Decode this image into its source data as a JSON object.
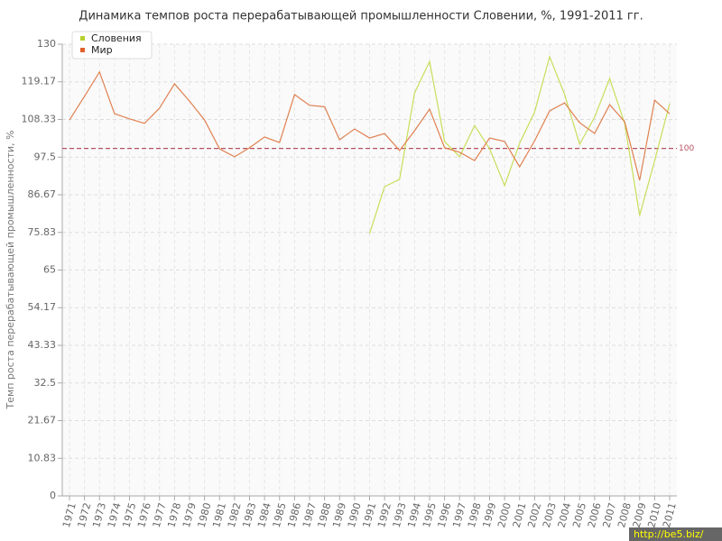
{
  "chart_data": {
    "type": "line",
    "title": "Динамика темпов роста перерабатывающей промышленности Словении, %, 1991-2011 гг.",
    "y_label": "Темп роста перерабатывающей промышленности, %",
    "categories": [
      "1971",
      "1972",
      "1973",
      "1974",
      "1975",
      "1976",
      "1977",
      "1978",
      "1979",
      "1980",
      "1981",
      "1982",
      "1983",
      "1984",
      "1985",
      "1986",
      "1987",
      "1988",
      "1989",
      "1990",
      "1991",
      "1992",
      "1993",
      "1994",
      "1995",
      "1996",
      "1997",
      "1998",
      "1999",
      "2000",
      "2001",
      "2002",
      "2003",
      "2004",
      "2005",
      "2006",
      "2007",
      "2008",
      "2009",
      "2010",
      "2011"
    ],
    "series": [
      {
        "name": "Словения",
        "color": "#c8de5a",
        "legend_color": "#b5d12a",
        "values": [
          null,
          null,
          null,
          null,
          null,
          null,
          null,
          null,
          null,
          null,
          null,
          null,
          null,
          null,
          null,
          null,
          null,
          null,
          null,
          null,
          75.5,
          89,
          91.1,
          116,
          125,
          102,
          97.6,
          106.6,
          99.9,
          89.3,
          101.5,
          110.5,
          126.4,
          115.5,
          101.2,
          109,
          120.1,
          107.2,
          80.7,
          96.5,
          112.9
        ]
      },
      {
        "name": "Мир",
        "color": "#e08050",
        "legend_color": "#e0602a",
        "values": [
          108.2,
          115,
          122,
          110,
          108.5,
          107.2,
          111.6,
          118.6,
          113.6,
          108.2,
          99.9,
          97.6,
          100.2,
          103.3,
          101.7,
          115.5,
          112.4,
          112,
          102.5,
          105.6,
          103,
          104.3,
          99.4,
          105.1,
          111.3,
          100.2,
          98.9,
          96.5,
          103,
          102,
          94.7,
          102.2,
          110.8,
          113.1,
          107.4,
          104.3,
          112.6,
          107.7,
          90.8,
          113.9,
          110
        ]
      }
    ],
    "reference_line": {
      "value": 100,
      "label": "100",
      "color": "#b85060"
    },
    "ylim": [
      0,
      130
    ],
    "yticks": [
      0,
      10.83,
      21.67,
      32.5,
      43.33,
      54.17,
      65,
      75.83,
      86.67,
      97.5,
      108.33,
      119.17,
      130
    ],
    "grid": true,
    "legend": "top-left",
    "watermark": "http://be5.biz/"
  }
}
